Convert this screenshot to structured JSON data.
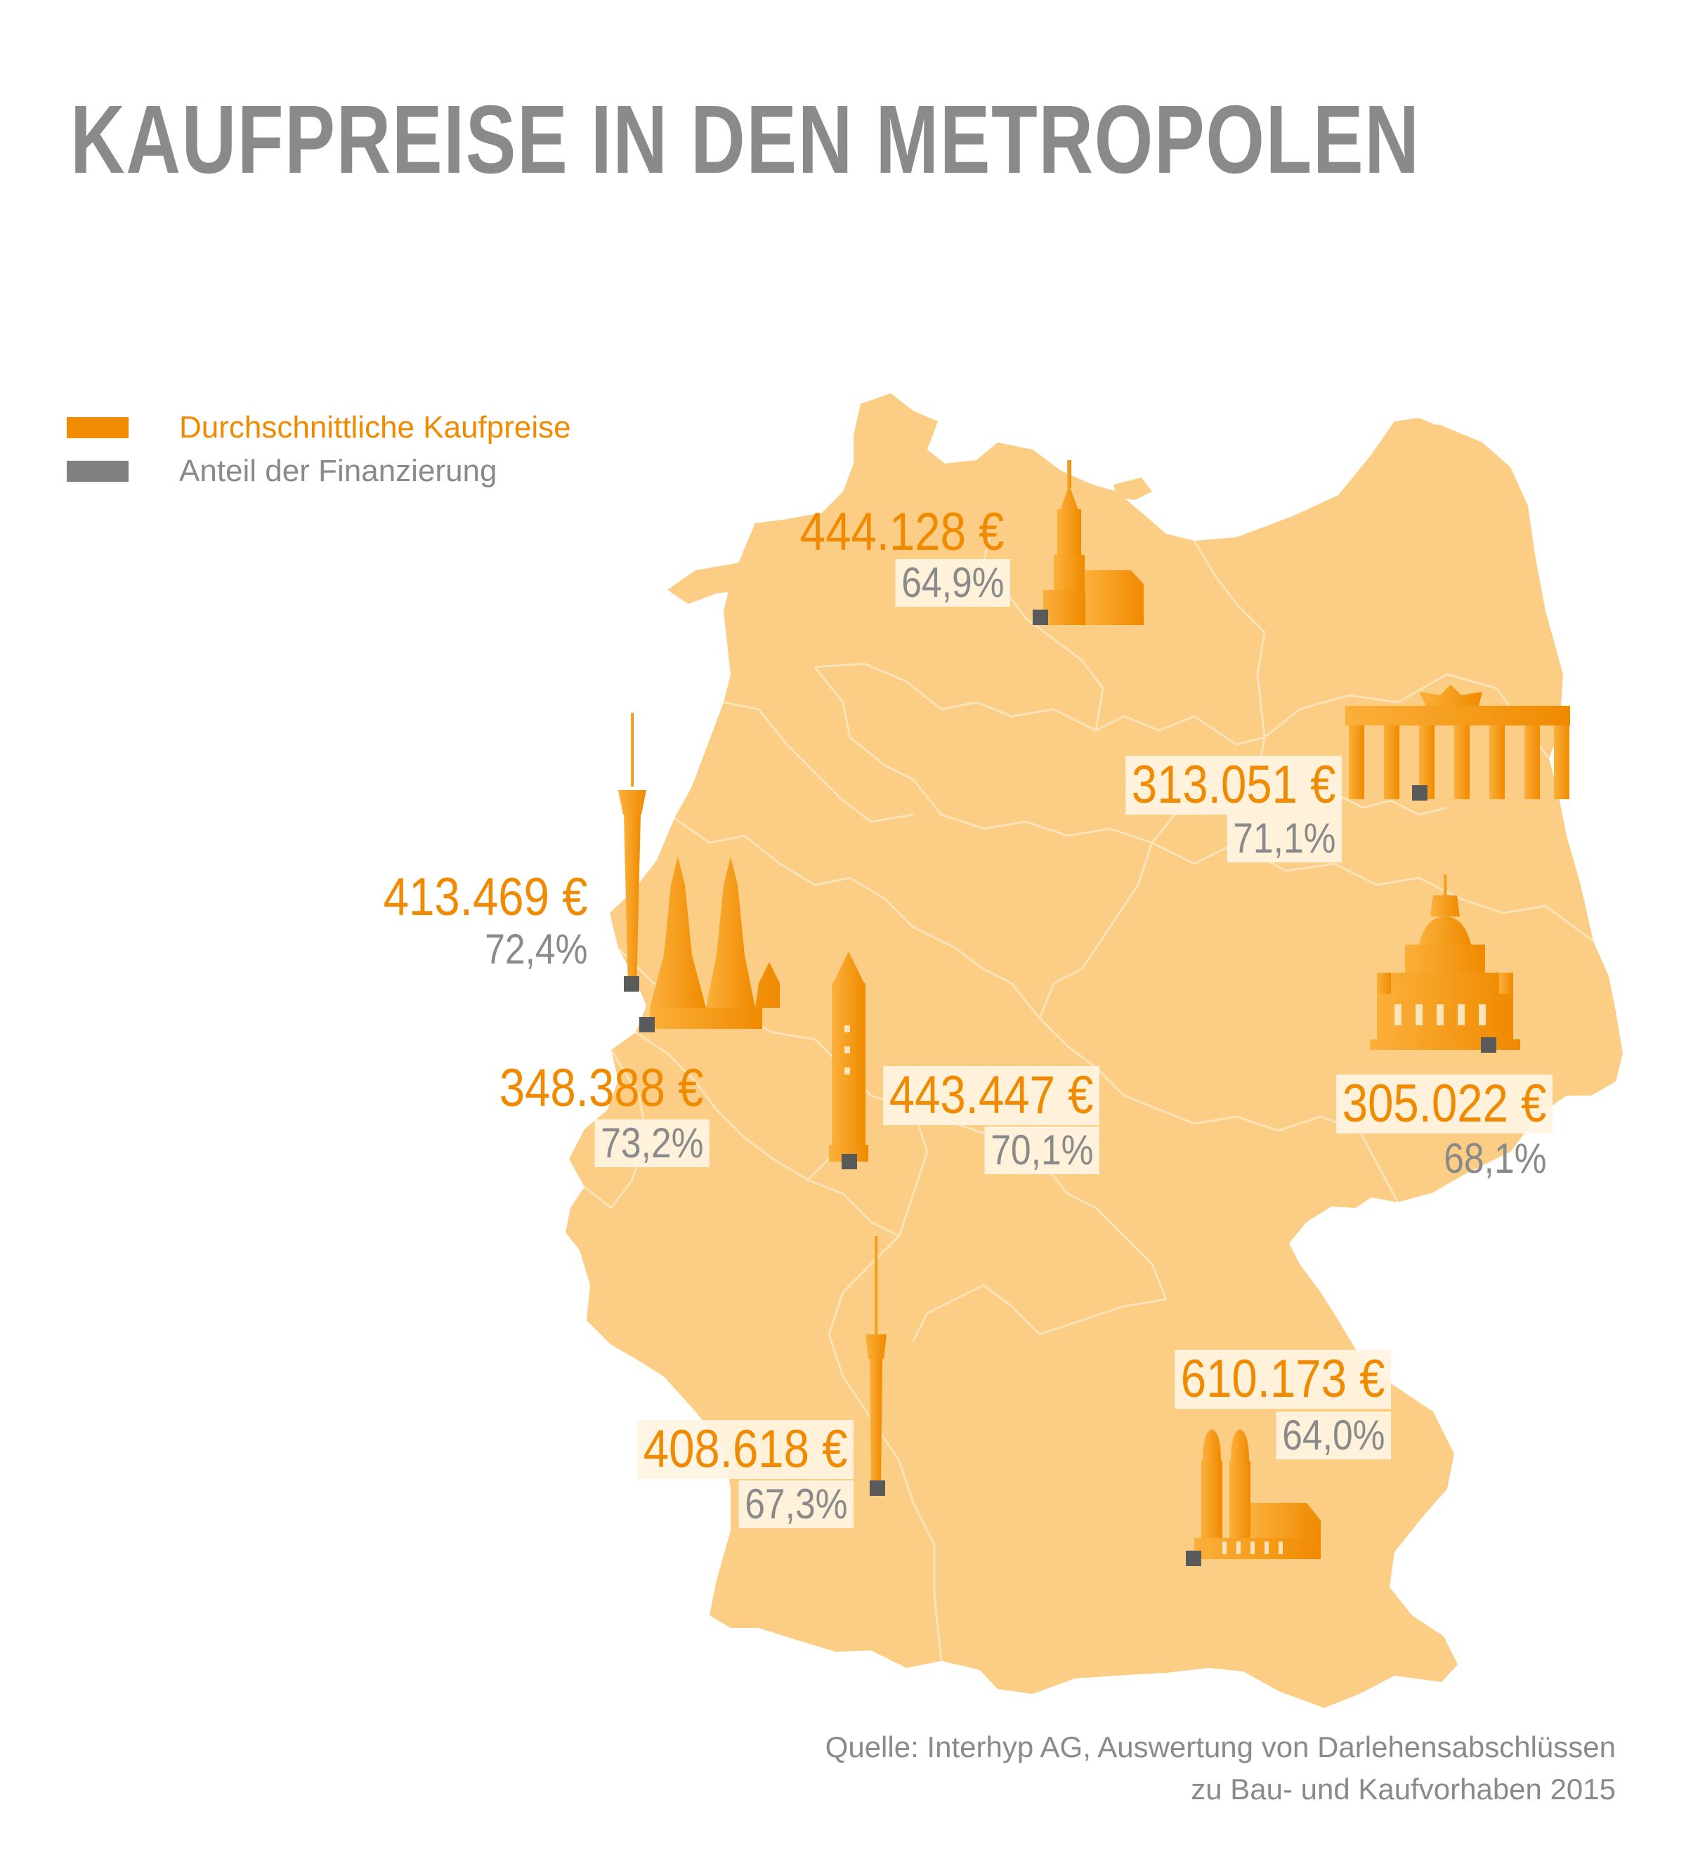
{
  "title": "KAUFPREISE IN DEN METROPOLEN",
  "legend": {
    "items": [
      {
        "label": "Durchschnittliche Kaufpreise",
        "color": "#f28c00"
      },
      {
        "label": "Anteil der Finanzierung",
        "color": "#808080"
      }
    ]
  },
  "colors": {
    "map_fill": "#fbcd85",
    "border": "#fde3b8",
    "landmark": "#f39200",
    "marker": "#5a5a5a",
    "price_text": "#f08a00",
    "share_text": "#8a8a8a"
  },
  "cities": [
    {
      "id": "hamburg",
      "price": "444.128 €",
      "share": "64,9%",
      "icon": "church-tower-icon"
    },
    {
      "id": "berlin",
      "price": "313.051 €",
      "share": "71,1%",
      "icon": "brandenburg-gate-icon"
    },
    {
      "id": "duesseldorf",
      "price": "413.469 €",
      "share": "72,4%",
      "icon": "tv-tower-icon"
    },
    {
      "id": "koeln",
      "price": "348.388 €",
      "share": "73,2%",
      "icon": "cathedral-icon"
    },
    {
      "id": "frankfurt",
      "price": "443.447 €",
      "share": "70,1%",
      "icon": "skyscraper-icon"
    },
    {
      "id": "dresden",
      "price": "305.022 €",
      "share": "68,1%",
      "icon": "frauenkirche-icon"
    },
    {
      "id": "stuttgart",
      "price": "408.618 €",
      "share": "67,3%",
      "icon": "tv-tower-icon"
    },
    {
      "id": "muenchen",
      "price": "610.173 €",
      "share": "64,0%",
      "icon": "frauenkirche-munich-icon"
    }
  ],
  "source": {
    "line1": "Quelle: Interhyp AG, Auswertung von Darlehensabschlüssen",
    "line2": "zu Bau- und Kaufvorhaben 2015"
  }
}
